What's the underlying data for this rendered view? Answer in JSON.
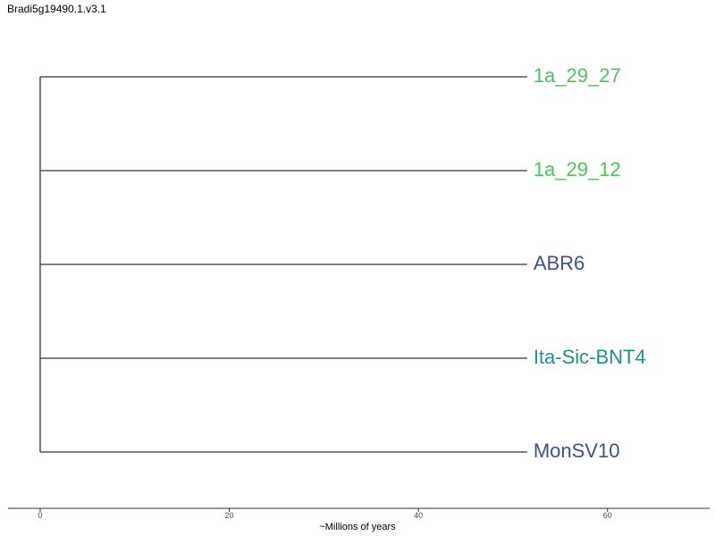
{
  "title": "Bradi5g19490.1.v3.1",
  "tree": {
    "tips": [
      {
        "label": "1a_29_27",
        "color": "#4cc55d"
      },
      {
        "label": "1a_29_12",
        "color": "#4cc55d"
      },
      {
        "label": "ABR6",
        "color": "#3b528b"
      },
      {
        "label": "Ita-Sic-BNT4",
        "color": "#21908d"
      },
      {
        "label": "MonSV10",
        "color": "#3b528b"
      }
    ],
    "root_age": 0,
    "branch_length": 51.5
  },
  "axis": {
    "title": "~Millions of years",
    "range": [
      -3.4,
      70.8
    ],
    "ticks": [
      0,
      20,
      40,
      60
    ]
  },
  "colors": {
    "branch": "#333333",
    "axis": "#333333",
    "tick_label": "#4d4d4d"
  }
}
